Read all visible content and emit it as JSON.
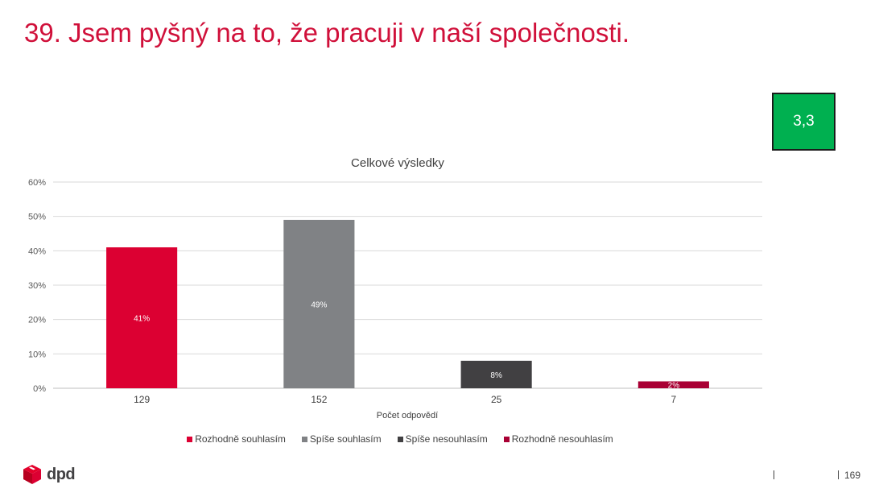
{
  "slide": {
    "title": "39. Jsem pyšný na to, že pracuji v naší společnosti.",
    "score": "3,3",
    "page_number": "169",
    "logo_text": "dpd"
  },
  "colors": {
    "title": "#d0103a",
    "score_bg": "#00b050"
  },
  "chart_data": {
    "type": "bar",
    "title": "Celkové výsledky",
    "xlabel": "Počet odpovědí",
    "ylabel": "",
    "categories": [
      "129",
      "152",
      "25",
      "7"
    ],
    "values": [
      41,
      49,
      8,
      2
    ],
    "value_labels": [
      "41%",
      "49%",
      "8%",
      "2%"
    ],
    "colors": [
      "#dc0032",
      "#808285",
      "#414042",
      "#a90034"
    ],
    "series_names": [
      "Rozhodně souhlasím",
      "Spíše souhlasím",
      "Spíše nesouhlasím",
      "Rozhodně nesouhlasím"
    ],
    "yticks": [
      "0%",
      "10%",
      "20%",
      "30%",
      "40%",
      "50%",
      "60%"
    ],
    "ylim": [
      0,
      60
    ],
    "grid": true,
    "legend_position": "bottom"
  }
}
